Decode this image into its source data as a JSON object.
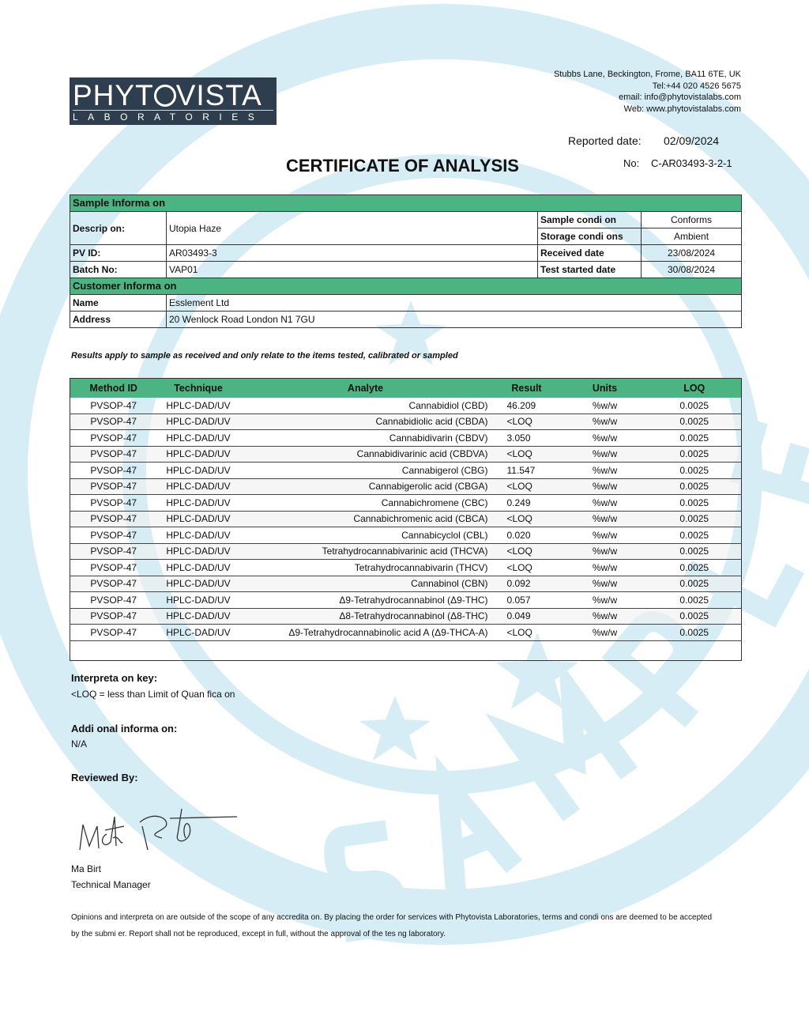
{
  "logo": {
    "name": "PHYTOVISTA",
    "sub": "LABORATORIES"
  },
  "watermark": {
    "text": "SAMPLE",
    "color": "#d6edf5"
  },
  "accent": "#4bb482",
  "address": [
    "Stubbs Lane, Beckington, Frome, BA11 6TE, UK",
    "Tel:+44 020 4526 5675",
    "email: info@phytovistalabs.com",
    "Web: www.phytovistalabs.com"
  ],
  "reported": {
    "label": "Reported date:",
    "value": "02/09/2024"
  },
  "number": {
    "label": "No:",
    "value": "C-AR03493-3-2-1"
  },
  "title": "CERTIFICATE OF ANALYSIS",
  "sample_info": {
    "header": "Sample Informa on",
    "description": {
      "label": "Descrip on:",
      "value": "Utopia Haze"
    },
    "pvid": {
      "label": "PV ID:",
      "value": "AR03493-3"
    },
    "batch": {
      "label": "Batch No:",
      "value": "VAP01"
    },
    "sample_condition": {
      "label": "Sample condi on",
      "value": "Conforms"
    },
    "storage_conditions": {
      "label": "Storage condi ons",
      "value": "Ambient"
    },
    "received_date": {
      "label": "Received date",
      "value": "23/08/2024"
    },
    "test_started": {
      "label": "Test started date",
      "value": "30/08/2024"
    }
  },
  "customer_info": {
    "header": "Customer Informa on",
    "name": {
      "label": "Name",
      "value": "Esslement Ltd"
    },
    "address": {
      "label": "Address",
      "value": "20 Wenlock Road London N1 7GU"
    }
  },
  "note": "Results apply to sample as received and only relate to the items tested, calibrated or sampled",
  "results": {
    "columns": [
      "Method ID",
      "Technique",
      "Analyte",
      "Result",
      "Units",
      "LOQ"
    ],
    "rows": [
      [
        "PVSOP-47",
        "HPLC-DAD/UV",
        "Cannabidiol (CBD)",
        "46.209",
        "%w/w",
        "0.0025"
      ],
      [
        "PVSOP-47",
        "HPLC-DAD/UV",
        "Cannabidiolic acid (CBDA)",
        "<LOQ",
        "%w/w",
        "0.0025"
      ],
      [
        "PVSOP-47",
        "HPLC-DAD/UV",
        "Cannabidivarin (CBDV)",
        "3.050",
        "%w/w",
        "0.0025"
      ],
      [
        "PVSOP-47",
        "HPLC-DAD/UV",
        "Cannabidivarinic acid (CBDVA)",
        "<LOQ",
        "%w/w",
        "0.0025"
      ],
      [
        "PVSOP-47",
        "HPLC-DAD/UV",
        "Cannabigerol (CBG)",
        "11.547",
        "%w/w",
        "0.0025"
      ],
      [
        "PVSOP-47",
        "HPLC-DAD/UV",
        "Cannabigerolic acid (CBGA)",
        "<LOQ",
        "%w/w",
        "0.0025"
      ],
      [
        "PVSOP-47",
        "HPLC-DAD/UV",
        "Cannabichromene (CBC)",
        "0.249",
        "%w/w",
        "0.0025"
      ],
      [
        "PVSOP-47",
        "HPLC-DAD/UV",
        "Cannabichromenic acid (CBCA)",
        "<LOQ",
        "%w/w",
        "0.0025"
      ],
      [
        "PVSOP-47",
        "HPLC-DAD/UV",
        "Cannabicyclol (CBL)",
        "0.020",
        "%w/w",
        "0.0025"
      ],
      [
        "PVSOP-47",
        "HPLC-DAD/UV",
        "Tetrahydrocannabivarinic acid (THCVA)",
        "<LOQ",
        "%w/w",
        "0.0025"
      ],
      [
        "PVSOP-47",
        "HPLC-DAD/UV",
        "Tetrahydrocannabivarin (THCV)",
        "<LOQ",
        "%w/w",
        "0.0025"
      ],
      [
        "PVSOP-47",
        "HPLC-DAD/UV",
        "Cannabinol (CBN)",
        "0.092",
        "%w/w",
        "0.0025"
      ],
      [
        "PVSOP-47",
        "HPLC-DAD/UV",
        "Δ9-Tetrahydrocannabinol (Δ9-THC)",
        "0.057",
        "%w/w",
        "0.0025"
      ],
      [
        "PVSOP-47",
        "HPLC-DAD/UV",
        "Δ8-Tetrahydrocannabinol (Δ8-THC)",
        "0.049",
        "%w/w",
        "0.0025"
      ],
      [
        "PVSOP-47",
        "HPLC-DAD/UV",
        "Δ9-Tetrahydrocannabinolic acid A (Δ9-THCA-A)",
        "<LOQ",
        "%w/w",
        "0.0025"
      ]
    ]
  },
  "interpretation": {
    "heading": "Interpreta on key:",
    "text": "<LOQ = less than Limit of Quan fica on"
  },
  "additional": {
    "heading": "Addi onal informa on:",
    "text": "N/A"
  },
  "reviewed": {
    "heading": "Reviewed By:",
    "name": "Ma  Birt",
    "role": "Technical Manager"
  },
  "footer": [
    "Opinions and interpreta on are outside of the scope of any accredita on. By placing the order for services with Phytovista Laboratories, terms and condi ons are deemed to be accepted",
    "by the submi er. Report shall not be reproduced, except in full, without the approval of the tes ng laboratory."
  ]
}
